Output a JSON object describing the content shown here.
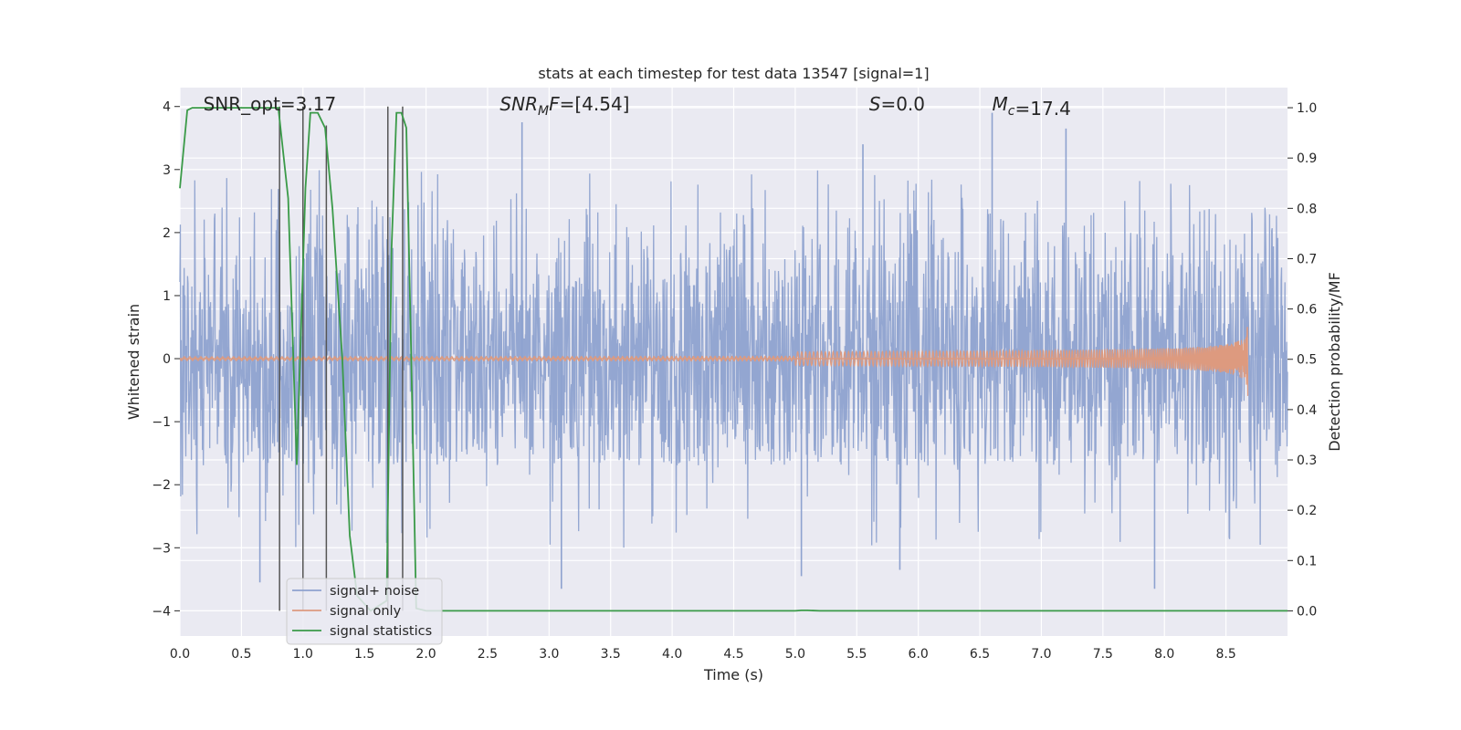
{
  "chart_data": {
    "type": "line",
    "title": "stats at each timestep for test data 13547 [signal=1]",
    "xlabel": "Time (s)",
    "ylabel_left": "Whitened strain",
    "ylabel_right": "Detection probability/MF",
    "xlim": [
      0.0,
      9.0
    ],
    "ylim_left": [
      -4.4,
      4.3
    ],
    "ylim_right": [
      -0.05,
      1.04
    ],
    "x_ticks": [
      "0.0",
      "0.5",
      "1.0",
      "1.5",
      "2.0",
      "2.5",
      "3.0",
      "3.5",
      "4.0",
      "4.5",
      "5.0",
      "5.5",
      "6.0",
      "6.5",
      "7.0",
      "7.5",
      "8.0",
      "8.5"
    ],
    "y_ticks_left": [
      "4",
      "3",
      "2",
      "1",
      "0",
      "−1",
      "−2",
      "−3",
      "−4"
    ],
    "y_ticks_right": [
      "1.0",
      "0.9",
      "0.8",
      "0.7",
      "0.6",
      "0.5",
      "0.4",
      "0.3",
      "0.2",
      "0.1",
      "0.0"
    ],
    "grid": true,
    "legend_position": "lower-left",
    "annotations": [
      {
        "id": "snr-opt",
        "text": "SNR_opt=3.17",
        "x": 0.19
      },
      {
        "id": "snr-mf",
        "text": "=[4.54]",
        "prefix": "SNR",
        "sub": "M",
        "mid": "F",
        "x": 2.6
      },
      {
        "id": "s-value",
        "text": "=0.0",
        "prefix": "S",
        "x": 5.6
      },
      {
        "id": "mc-value",
        "text": "=17.4",
        "prefix": "M",
        "sub": "c",
        "x": 6.6
      }
    ],
    "series": [
      {
        "name": "signal+ noise",
        "axis": "left",
        "color": "#8ea2cf",
        "kind": "noise",
        "x_range": [
          0.0,
          9.0
        ],
        "envelope": [
          -3.6,
          3.9
        ],
        "typical_range": [
          -1.7,
          2.4
        ],
        "peaks": [
          {
            "x": 2.78,
            "y": 3.75
          },
          {
            "x": 5.55,
            "y": 3.4
          },
          {
            "x": 6.6,
            "y": 3.9
          },
          {
            "x": 7.2,
            "y": 3.65
          },
          {
            "x": 3.1,
            "y": -3.65
          },
          {
            "x": 7.92,
            "y": -3.65
          },
          {
            "x": 0.65,
            "y": -3.55
          },
          {
            "x": 5.05,
            "y": -3.45
          },
          {
            "x": 5.85,
            "y": -3.35
          }
        ]
      },
      {
        "name": "signal only",
        "axis": "left",
        "color": "#dd9a7f",
        "kind": "chirp",
        "x_range": [
          0.0,
          8.68
        ],
        "end_amplitude": 0.6,
        "start_visible": 5.0
      },
      {
        "name": "signal statistics",
        "axis": "right",
        "color": "#3a9a48",
        "x": [
          0.0,
          0.06,
          0.1,
          0.3,
          0.6,
          0.8,
          0.88,
          0.95,
          1.02,
          1.06,
          1.12,
          1.18,
          1.24,
          1.32,
          1.38,
          1.44,
          1.55,
          1.68,
          1.72,
          1.76,
          1.8,
          1.84,
          1.88,
          1.92,
          2.0,
          4.5,
          5.0,
          5.05,
          5.1,
          5.2,
          9.0
        ],
        "y": [
          0.84,
          0.995,
          1.0,
          1.0,
          1.0,
          1.0,
          0.82,
          0.29,
          0.84,
          0.99,
          0.99,
          0.96,
          0.8,
          0.5,
          0.15,
          0.03,
          0.0,
          0.02,
          0.72,
          0.99,
          0.99,
          0.96,
          0.5,
          0.005,
          0.0,
          0.0,
          0.0,
          0.001,
          0.001,
          0.0,
          0.0
        ]
      }
    ],
    "vertical_markers": {
      "color": "#555555",
      "x": [
        0.81,
        1.0,
        1.19,
        1.69,
        1.81
      ],
      "y_bottom": -4.0,
      "y_top": [
        4.0,
        4.0,
        3.7,
        4.0,
        4.0
      ]
    }
  }
}
